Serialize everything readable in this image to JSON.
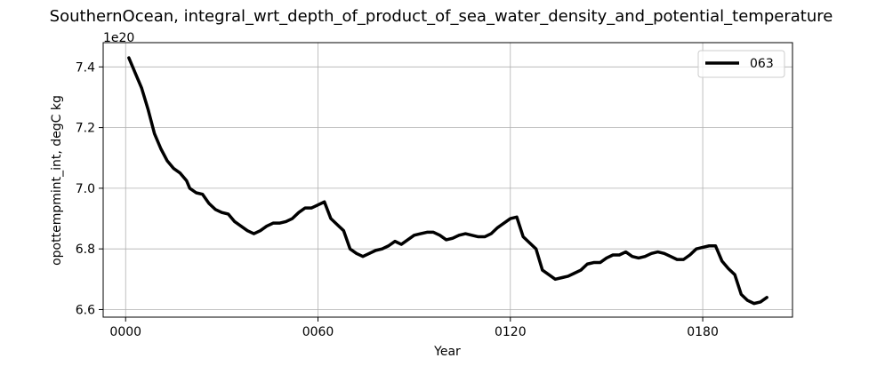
{
  "chart_data": {
    "type": "line",
    "title": "SouthernOcean, integral_wrt_depth_of_product_of_sea_water_density_and_potential_temperature",
    "xlabel": "Year",
    "ylabel": "opottempmint_int, degC kg",
    "y_offset_label": "1e20",
    "xlim": [
      -7,
      208
    ],
    "ylim": [
      6.575,
      7.48
    ],
    "x_ticks": [
      0,
      60,
      120,
      180
    ],
    "x_tick_labels": [
      "0000",
      "0060",
      "0120",
      "0180"
    ],
    "y_ticks": [
      6.6,
      6.8,
      7.0,
      7.2,
      7.4
    ],
    "y_tick_labels": [
      "6.6",
      "6.8",
      "7.0",
      "7.2",
      "7.4"
    ],
    "grid": true,
    "legend_position": "top-right",
    "series": [
      {
        "name": "063",
        "color": "#000000",
        "x": [
          1,
          3,
          5,
          7,
          9,
          11,
          13,
          15,
          17,
          19,
          20,
          22,
          24,
          26,
          28,
          30,
          32,
          34,
          36,
          38,
          40,
          42,
          44,
          46,
          48,
          50,
          52,
          54,
          56,
          58,
          60,
          62,
          64,
          66,
          68,
          70,
          72,
          74,
          76,
          78,
          80,
          82,
          84,
          86,
          88,
          90,
          92,
          94,
          96,
          98,
          100,
          102,
          104,
          106,
          108,
          110,
          112,
          114,
          116,
          118,
          120,
          122,
          124,
          126,
          128,
          130,
          132,
          134,
          136,
          138,
          140,
          142,
          144,
          146,
          148,
          150,
          152,
          154,
          156,
          158,
          160,
          162,
          164,
          166,
          168,
          170,
          172,
          174,
          176,
          178,
          180,
          182,
          184,
          186,
          188,
          190,
          192,
          194,
          196,
          198,
          200
        ],
        "y": [
          7.43,
          7.38,
          7.33,
          7.26,
          7.18,
          7.13,
          7.09,
          7.065,
          7.05,
          7.025,
          7.0,
          6.985,
          6.98,
          6.95,
          6.93,
          6.92,
          6.915,
          6.89,
          6.875,
          6.86,
          6.85,
          6.86,
          6.875,
          6.885,
          6.885,
          6.89,
          6.9,
          6.92,
          6.935,
          6.935,
          6.945,
          6.955,
          6.9,
          6.88,
          6.86,
          6.8,
          6.785,
          6.775,
          6.785,
          6.795,
          6.8,
          6.81,
          6.825,
          6.815,
          6.83,
          6.845,
          6.85,
          6.855,
          6.855,
          6.845,
          6.83,
          6.835,
          6.845,
          6.85,
          6.845,
          6.84,
          6.84,
          6.85,
          6.87,
          6.885,
          6.9,
          6.905,
          6.84,
          6.82,
          6.8,
          6.73,
          6.715,
          6.7,
          6.705,
          6.71,
          6.72,
          6.73,
          6.75,
          6.755,
          6.755,
          6.77,
          6.78,
          6.78,
          6.79,
          6.775,
          6.77,
          6.775,
          6.785,
          6.79,
          6.785,
          6.775,
          6.765,
          6.765,
          6.78,
          6.8,
          6.805,
          6.81,
          6.81,
          6.76,
          6.735,
          6.715,
          6.65,
          6.63,
          6.62,
          6.625,
          6.64
        ]
      }
    ]
  }
}
